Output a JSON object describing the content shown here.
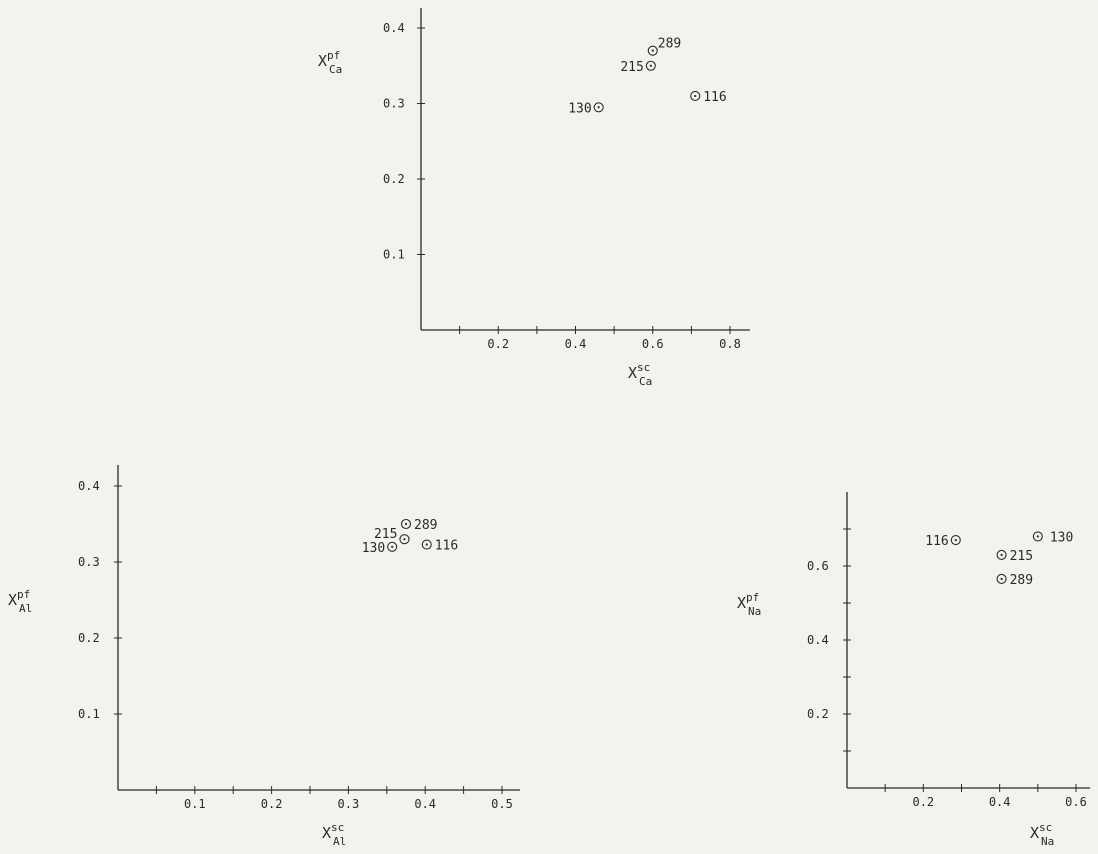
{
  "chart_data": [
    {
      "type": "scatter",
      "xlabel": {
        "base": "X",
        "sup": "sc",
        "sub": "Ca"
      },
      "ylabel": {
        "base": "X",
        "sup": "pf",
        "sub": "Ca"
      },
      "xlim": [
        0,
        0.85
      ],
      "ylim": [
        0,
        0.42
      ],
      "x_ticks": [
        0.1,
        0.2,
        0.3,
        0.4,
        0.5,
        0.6,
        0.7,
        0.8
      ],
      "x_tick_labels": [
        "0.2",
        "0.4",
        "0.6",
        "0.8"
      ],
      "x_tick_label_values": [
        0.2,
        0.4,
        0.6,
        0.8
      ],
      "y_ticks": [
        0.1,
        0.2,
        0.3,
        0.4
      ],
      "y_tick_labels": [
        "0.1",
        "0.2",
        "0.3",
        "0.4"
      ],
      "points": [
        {
          "label": "289",
          "x": 0.6,
          "y": 0.37
        },
        {
          "label": "215",
          "x": 0.595,
          "y": 0.35
        },
        {
          "label": "130",
          "x": 0.46,
          "y": 0.295
        },
        {
          "label": "116",
          "x": 0.71,
          "y": 0.31
        }
      ],
      "grid": false
    },
    {
      "type": "scatter",
      "xlabel": {
        "base": "X",
        "sup": "sc",
        "sub": "Al"
      },
      "ylabel": {
        "base": "X",
        "sup": "pf",
        "sub": "Al"
      },
      "xlim": [
        0,
        0.52
      ],
      "ylim": [
        0,
        0.43
      ],
      "x_ticks": [
        0.05,
        0.1,
        0.15,
        0.2,
        0.25,
        0.3,
        0.35,
        0.4,
        0.45,
        0.5
      ],
      "x_tick_labels": [
        "0.1",
        "0.2",
        "0.3",
        "0.4",
        "0.5"
      ],
      "x_tick_label_values": [
        0.1,
        0.2,
        0.3,
        0.4,
        0.5
      ],
      "y_ticks": [
        0.1,
        0.2,
        0.3,
        0.4
      ],
      "y_tick_labels": [
        "0.1",
        "0.2",
        "0.3",
        "0.4"
      ],
      "points": [
        {
          "label": "289",
          "x": 0.375,
          "y": 0.35
        },
        {
          "label": "215",
          "x": 0.373,
          "y": 0.33
        },
        {
          "label": "130",
          "x": 0.357,
          "y": 0.32
        },
        {
          "label": "116",
          "x": 0.402,
          "y": 0.323
        }
      ],
      "grid": false
    },
    {
      "type": "scatter",
      "xlabel": {
        "base": "X",
        "sup": "sc",
        "sub": "Na"
      },
      "ylabel": {
        "base": "X",
        "sup": "pf",
        "sub": "Na"
      },
      "xlim": [
        0,
        0.63
      ],
      "ylim": [
        0,
        0.77
      ],
      "x_ticks": [
        0.1,
        0.2,
        0.3,
        0.4,
        0.5,
        0.6
      ],
      "x_tick_labels": [
        "0.2",
        "0.4",
        "0.6"
      ],
      "x_tick_label_values": [
        0.2,
        0.4,
        0.6
      ],
      "y_ticks": [
        0.1,
        0.2,
        0.3,
        0.4,
        0.5,
        0.6,
        0.7
      ],
      "y_tick_labels": [
        "0.2",
        "0.4",
        "0.6"
      ],
      "y_tick_label_values": [
        0.2,
        0.4,
        0.6
      ],
      "points": [
        {
          "label": "116",
          "x": 0.285,
          "y": 0.67
        },
        {
          "label": "215",
          "x": 0.405,
          "y": 0.63
        },
        {
          "label": "130",
          "x": 0.5,
          "y": 0.68
        },
        {
          "label": "289",
          "x": 0.405,
          "y": 0.565
        }
      ],
      "grid": false
    }
  ]
}
